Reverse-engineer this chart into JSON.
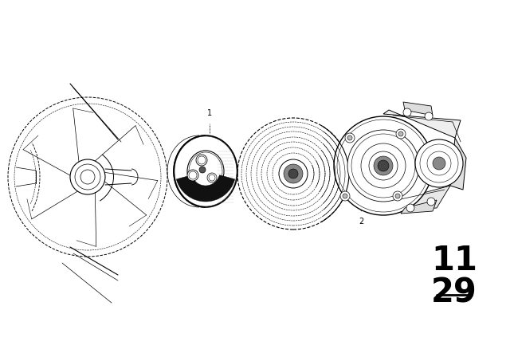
{
  "background_color": "#ffffff",
  "line_color": "#000000",
  "section_number_top": "11",
  "section_number_bottom": "29",
  "label1": "1",
  "label2": "2",
  "fig_width": 6.4,
  "fig_height": 4.48,
  "dpi": 100
}
